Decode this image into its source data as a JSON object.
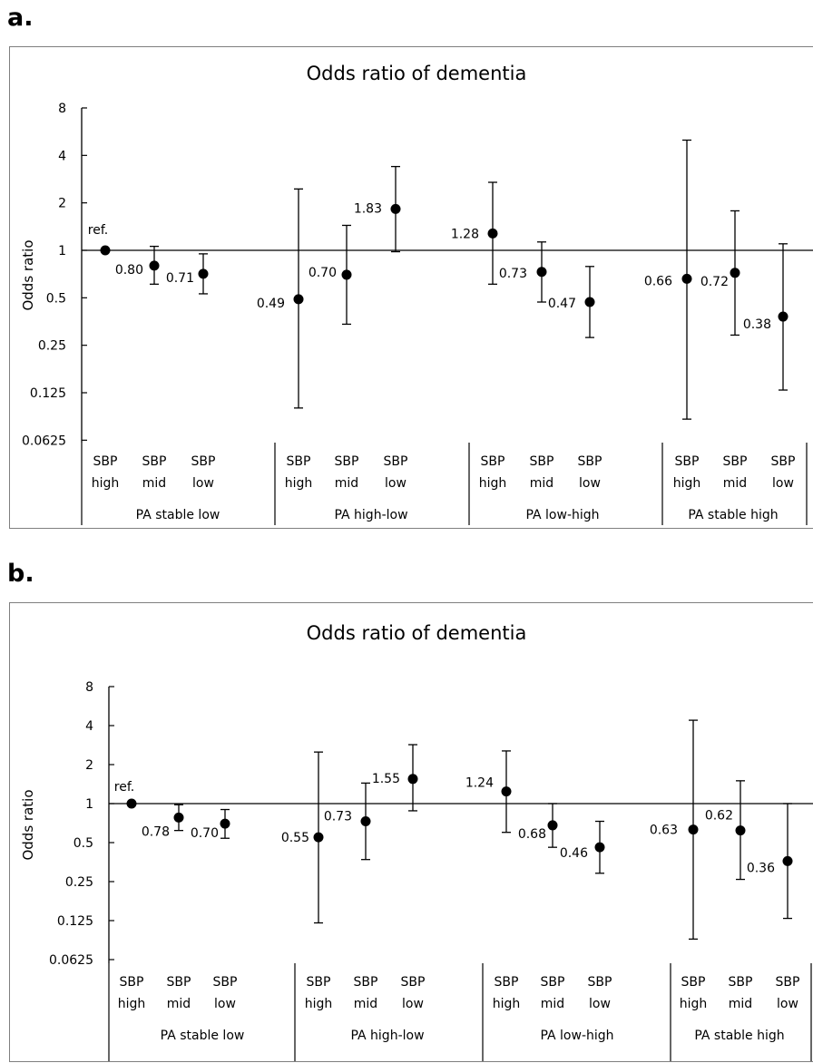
{
  "panels": [
    {
      "letter": "a."
    },
    {
      "letter": "b."
    }
  ],
  "chart_data": [
    {
      "type": "scatter",
      "title": "Odds ratio of dementia",
      "ylabel": "Odds ratio",
      "yscale": "log2",
      "yticks": [
        "8",
        "4",
        "2",
        "1",
        "0.5",
        "0.25",
        "0.125",
        "0.0625"
      ],
      "ytick_values": [
        8,
        4,
        2,
        1,
        0.5,
        0.25,
        0.125,
        0.0625
      ],
      "reference_line": 1,
      "groups": [
        "PA stable low",
        "PA high-low",
        "PA low-high",
        "PA stable high"
      ],
      "subgroups": [
        [
          "SBP",
          "high"
        ],
        [
          "SBP",
          "mid"
        ],
        [
          "SBP",
          "low"
        ]
      ],
      "points": [
        {
          "group": "PA stable low",
          "sbp": "high",
          "or": 1.0,
          "lo": 1.0,
          "hi": 1.0,
          "label": "ref."
        },
        {
          "group": "PA stable low",
          "sbp": "mid",
          "or": 0.8,
          "lo": 0.61,
          "hi": 1.06,
          "label": "0.80"
        },
        {
          "group": "PA stable low",
          "sbp": "low",
          "or": 0.71,
          "lo": 0.53,
          "hi": 0.95,
          "label": "0.71"
        },
        {
          "group": "PA high-low",
          "sbp": "high",
          "or": 0.49,
          "lo": 0.1,
          "hi": 2.45,
          "label": "0.49"
        },
        {
          "group": "PA high-low",
          "sbp": "mid",
          "or": 0.7,
          "lo": 0.34,
          "hi": 1.44,
          "label": "0.70"
        },
        {
          "group": "PA high-low",
          "sbp": "low",
          "or": 1.83,
          "lo": 0.98,
          "hi": 3.4,
          "label": "1.83"
        },
        {
          "group": "PA low-high",
          "sbp": "high",
          "or": 1.28,
          "lo": 0.61,
          "hi": 2.7,
          "label": "1.28"
        },
        {
          "group": "PA low-high",
          "sbp": "mid",
          "or": 0.73,
          "lo": 0.47,
          "hi": 1.13,
          "label": "0.73"
        },
        {
          "group": "PA low-high",
          "sbp": "low",
          "or": 0.47,
          "lo": 0.28,
          "hi": 0.79,
          "label": "0.47"
        },
        {
          "group": "PA stable high",
          "sbp": "high",
          "or": 0.66,
          "lo": 0.085,
          "hi": 5.0,
          "label": "0.66"
        },
        {
          "group": "PA stable high",
          "sbp": "mid",
          "or": 0.72,
          "lo": 0.29,
          "hi": 1.78,
          "label": "0.72"
        },
        {
          "group": "PA stable high",
          "sbp": "low",
          "or": 0.38,
          "lo": 0.13,
          "hi": 1.1,
          "label": "0.38"
        }
      ]
    },
    {
      "type": "scatter",
      "title": "Odds ratio of dementia",
      "ylabel": "Odds ratio",
      "yscale": "log2",
      "yticks": [
        "8",
        "4",
        "2",
        "1",
        "0.5",
        "0.25",
        "0.125",
        "0.0625"
      ],
      "ytick_values": [
        8,
        4,
        2,
        1,
        0.5,
        0.25,
        0.125,
        0.0625
      ],
      "reference_line": 1,
      "groups": [
        "PA stable low",
        "PA high-low",
        "PA low-high",
        "PA stable high"
      ],
      "subgroups": [
        [
          "SBP",
          "high"
        ],
        [
          "SBP",
          "mid"
        ],
        [
          "SBP",
          "low"
        ]
      ],
      "points": [
        {
          "group": "PA stable low",
          "sbp": "high",
          "or": 1.0,
          "lo": 1.0,
          "hi": 1.0,
          "label": "ref."
        },
        {
          "group": "PA stable low",
          "sbp": "mid",
          "or": 0.78,
          "lo": 0.62,
          "hi": 0.98,
          "label": "0.78"
        },
        {
          "group": "PA stable low",
          "sbp": "low",
          "or": 0.7,
          "lo": 0.54,
          "hi": 0.9,
          "label": "0.70"
        },
        {
          "group": "PA high-low",
          "sbp": "high",
          "or": 0.55,
          "lo": 0.12,
          "hi": 2.5,
          "label": "0.55"
        },
        {
          "group": "PA high-low",
          "sbp": "mid",
          "or": 0.73,
          "lo": 0.37,
          "hi": 1.44,
          "label": "0.73"
        },
        {
          "group": "PA high-low",
          "sbp": "low",
          "or": 1.55,
          "lo": 0.88,
          "hi": 2.85,
          "label": "1.55"
        },
        {
          "group": "PA low-high",
          "sbp": "high",
          "or": 1.24,
          "lo": 0.6,
          "hi": 2.55,
          "label": "1.24"
        },
        {
          "group": "PA low-high",
          "sbp": "mid",
          "or": 0.68,
          "lo": 0.46,
          "hi": 1.0,
          "label": "0.68"
        },
        {
          "group": "PA low-high",
          "sbp": "low",
          "or": 0.46,
          "lo": 0.29,
          "hi": 0.73,
          "label": "0.46"
        },
        {
          "group": "PA stable high",
          "sbp": "high",
          "or": 0.63,
          "lo": 0.09,
          "hi": 4.4,
          "label": "0.63"
        },
        {
          "group": "PA stable high",
          "sbp": "mid",
          "or": 0.62,
          "lo": 0.26,
          "hi": 1.5,
          "label": "0.62"
        },
        {
          "group": "PA stable high",
          "sbp": "low",
          "or": 0.36,
          "lo": 0.13,
          "hi": 1.0,
          "label": "0.36"
        }
      ]
    }
  ]
}
